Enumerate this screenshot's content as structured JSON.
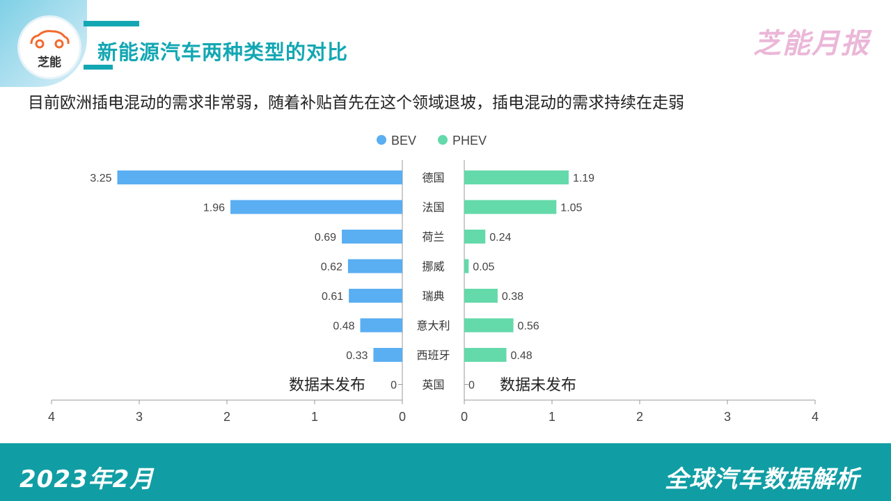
{
  "header": {
    "title": "新能源汽车两种类型的对比",
    "brand": "芝能月报",
    "logo_text": "芝能",
    "logo_icon": "car-icon"
  },
  "subtitle": "目前欧洲插电混动的需求非常弱，随着补贴首先在这个领域退坡，插电混动的需求持续在走弱",
  "chart_data": {
    "type": "bar",
    "orientation": "horizontal-butterfly",
    "categories": [
      "德国",
      "法国",
      "荷兰",
      "挪威",
      "瑞典",
      "意大利",
      "西班牙",
      "英国"
    ],
    "series": [
      {
        "name": "BEV",
        "color": "#5aaef2",
        "values": [
          3.25,
          1.96,
          0.69,
          0.62,
          0.61,
          0.48,
          0.33,
          0
        ]
      },
      {
        "name": "PHEV",
        "color": "#64d9aa",
        "values": [
          1.19,
          1.05,
          0.24,
          0.05,
          0.38,
          0.56,
          0.48,
          0
        ]
      }
    ],
    "xlim": [
      0,
      4
    ],
    "ticks": [
      0,
      1,
      2,
      3,
      4
    ],
    "legend": "top-center",
    "grid": false,
    "annotations": [
      {
        "series": "BEV",
        "category": "英国",
        "text": "数据未发布"
      },
      {
        "series": "PHEV",
        "category": "英国",
        "text": "数据未发布"
      }
    ]
  },
  "footer": {
    "left": "2023年2月",
    "right": "全球汽车数据解析"
  }
}
